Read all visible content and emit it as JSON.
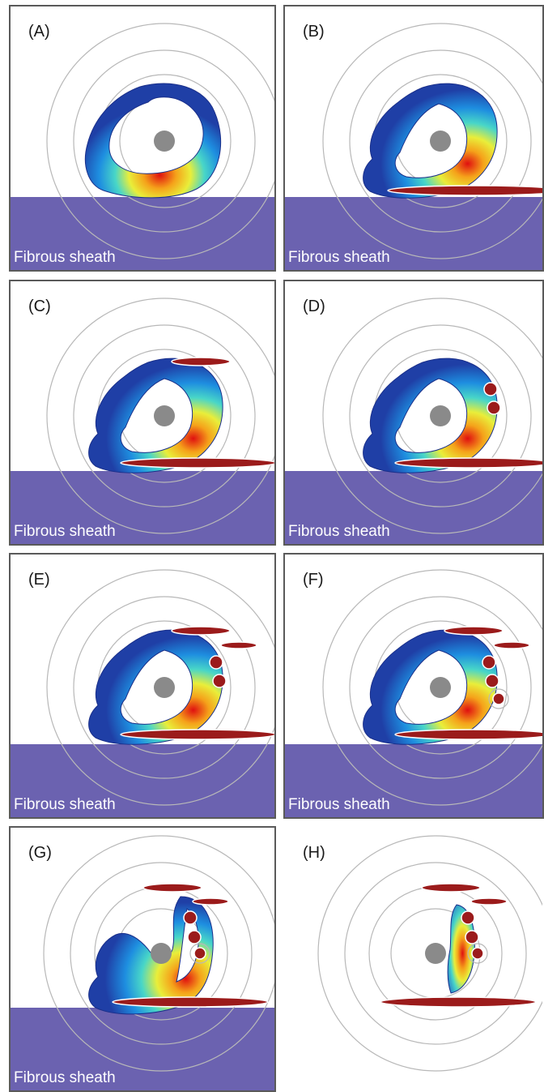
{
  "colors": {
    "sheath": "#6b62b0",
    "red_body": "#9b1b1b",
    "ring": "#b8b8b8",
    "core": "#8a8a8a"
  },
  "panels": [
    {
      "label": "(A)",
      "sheath_label": "Fibrous sheath",
      "has_sheath": true
    },
    {
      "label": "(B)",
      "sheath_label": "Fibrous sheath",
      "has_sheath": true
    },
    {
      "label": "(C)",
      "sheath_label": "Fibrous sheath",
      "has_sheath": true
    },
    {
      "label": "(D)",
      "sheath_label": "Fibrous sheath",
      "has_sheath": true
    },
    {
      "label": "(E)",
      "sheath_label": "Fibrous sheath",
      "has_sheath": true
    },
    {
      "label": "(F)",
      "sheath_label": "Fibrous sheath",
      "has_sheath": true
    },
    {
      "label": "(G)",
      "sheath_label": "Fibrous sheath",
      "has_sheath": true
    },
    {
      "label": "(H)",
      "sheath_label": "",
      "has_sheath": false
    }
  ]
}
